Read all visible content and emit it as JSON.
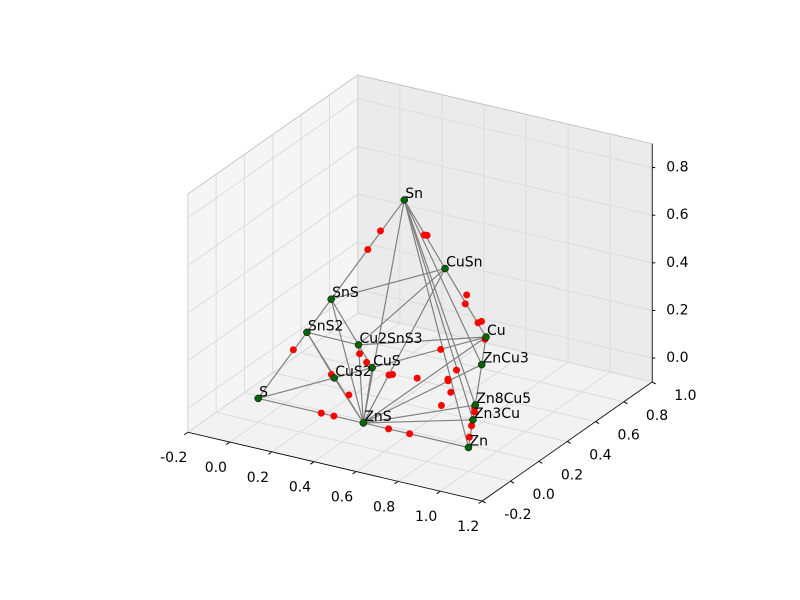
{
  "chart_data": {
    "type": "scatter3d",
    "labels": [
      "S",
      "Zn",
      "Cu",
      "Sn",
      "ZnS",
      "CuS",
      "CuS2",
      "SnS",
      "SnS2",
      "CuSn",
      "ZnCu3",
      "Zn8Cu5",
      "Zn3Cu",
      "Cu2SnS3"
    ],
    "x": [
      0,
      1,
      0.5,
      0.5,
      0.5,
      0.25,
      0.167,
      0.25,
      0.167,
      0.5,
      0.625,
      0.808,
      0.875,
      0.25
    ],
    "y": [
      0,
      0,
      0.866,
      0.289,
      0,
      0.433,
      0.289,
      0.144,
      0.096,
      0.577,
      0.65,
      0.333,
      0.217,
      0.337
    ],
    "z": [
      0,
      0,
      0,
      0.816,
      0,
      0,
      0,
      0.408,
      0.272,
      0.408,
      0,
      0,
      0,
      0.136
    ],
    "color": "#006400",
    "tie_lines": [
      [
        0,
        4
      ],
      [
        4,
        1
      ],
      [
        0,
        6
      ],
      [
        0,
        8
      ],
      [
        8,
        7
      ],
      [
        7,
        3
      ],
      [
        3,
        9
      ],
      [
        9,
        2
      ],
      [
        2,
        10
      ],
      [
        10,
        11
      ],
      [
        11,
        12
      ],
      [
        12,
        1
      ],
      [
        4,
        8
      ],
      [
        4,
        7
      ],
      [
        4,
        3
      ],
      [
        4,
        6
      ],
      [
        4,
        5
      ],
      [
        4,
        13
      ],
      [
        4,
        2
      ],
      [
        4,
        10
      ],
      [
        4,
        11
      ],
      [
        4,
        12
      ],
      [
        4,
        9
      ],
      [
        8,
        6
      ],
      [
        8,
        13
      ],
      [
        6,
        5
      ],
      [
        5,
        2
      ],
      [
        13,
        5
      ],
      [
        13,
        7
      ],
      [
        13,
        2
      ],
      [
        7,
        9
      ],
      [
        3,
        1
      ],
      [
        3,
        12
      ],
      [
        3,
        11
      ],
      [
        3,
        10
      ],
      [
        13,
        9
      ]
    ],
    "line_color": "#808080",
    "unstable": {
      "x": [
        0.3,
        0.36,
        0.62,
        0.72,
        0.12,
        0.375,
        0.42,
        0.5,
        0.5,
        0.5,
        0.52,
        0.52,
        0.55,
        0.58,
        0.45,
        0.84,
        0.82,
        0.9,
        0.95,
        0.75,
        0.68,
        0.66,
        0.2,
        0.33,
        0.28,
        0.3,
        0.42,
        0.43,
        0.5,
        0.6,
        0.7
      ],
      "y": [
        0,
        0,
        0,
        0,
        0.07,
        0.217,
        0.24,
        0.43,
        0.45,
        0.72,
        0.7,
        0.78,
        0.76,
        0.74,
        0.62,
        0.28,
        0.31,
        0.17,
        0.08,
        0.18,
        0.35,
        0.42,
        0.22,
        0.15,
        0.3,
        0.32,
        0.3,
        0.31,
        0.38,
        0.45,
        0.3
      ],
      "z": [
        0,
        0,
        0,
        0,
        0.2,
        0.612,
        0.69,
        0.61,
        0.6,
        0.2,
        0.25,
        0.1,
        0.12,
        0.06,
        0.04,
        0,
        0,
        0,
        0,
        0.05,
        0.02,
        0.08,
        0.05,
        0.02,
        0.12,
        0.08,
        0.06,
        0.06,
        0.03,
        0.01,
        0.1
      ],
      "color": "#ff0000"
    },
    "xlim": [
      -0.2,
      1.2
    ],
    "ylim": [
      -0.2,
      1.0
    ],
    "zlim": [
      -0.1,
      0.9
    ],
    "xticks": [
      -0.2,
      {
        "value": 0,
        "label": "0.0"
      },
      0.2,
      0.4,
      0.6,
      0.8,
      {
        "value": 1,
        "label": "1.0"
      },
      1.2
    ],
    "yticks": [
      -0.2,
      {
        "value": 0,
        "label": "0.0"
      },
      0.2,
      0.4,
      0.6,
      0.8,
      {
        "value": 1,
        "label": "1.0"
      }
    ],
    "zticks": [
      {
        "value": 0,
        "label": "0.0"
      },
      0.2,
      0.4,
      0.6,
      0.8
    ],
    "grid": true
  }
}
